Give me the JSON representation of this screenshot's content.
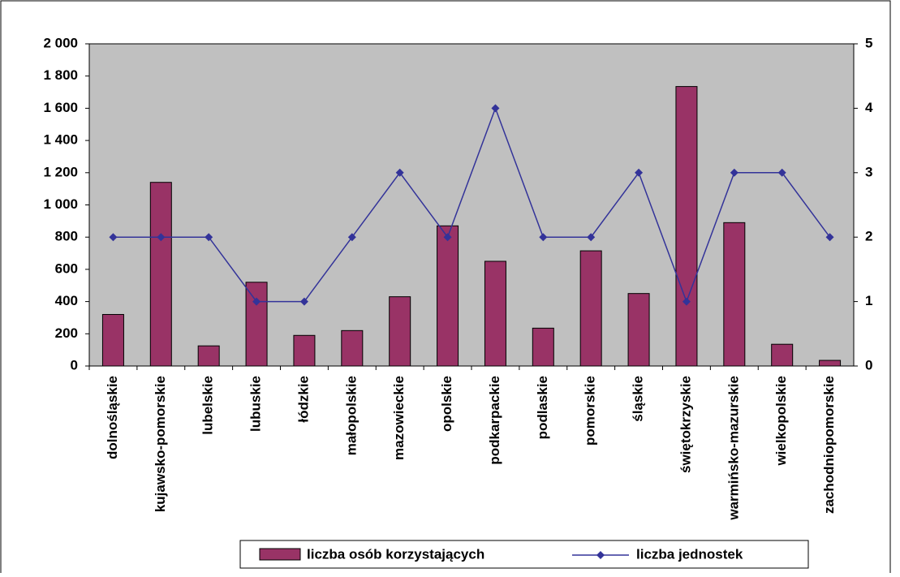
{
  "chart_data": {
    "type": "bar-line",
    "categories": [
      "dolnośląskie",
      "kujawsko-pomorskie",
      "lubelskie",
      "lubuskie",
      "łódzkie",
      "małopolskie",
      "mazowieckie",
      "opolskie",
      "podkarpackie",
      "podlaskie",
      "pomorskie",
      "śląskie",
      "świętokrzyskie",
      "warmińsko-mazurskie",
      "wielkopolskie",
      "zachodniopomorskie"
    ],
    "series": [
      {
        "name": "liczba osób korzystających",
        "type": "bar",
        "color": "#993366",
        "values": [
          320,
          1140,
          125,
          520,
          190,
          220,
          430,
          870,
          650,
          235,
          715,
          450,
          1735,
          890,
          135,
          35
        ]
      },
      {
        "name": "liczba jednostek",
        "type": "line",
        "axis": "y2",
        "color": "#333399",
        "values": [
          2,
          2,
          2,
          1,
          1,
          2,
          3,
          2,
          4,
          2,
          2,
          3,
          1,
          3,
          3,
          2
        ]
      }
    ],
    "ylim": [
      0,
      2000
    ],
    "yticks": [
      0,
      200,
      400,
      600,
      800,
      {
        "value": 1000,
        "label": "1 000"
      },
      {
        "value": 1200,
        "label": "1 200"
      },
      {
        "value": 1400,
        "label": "1 400"
      },
      {
        "value": 1600,
        "label": "1 600"
      },
      {
        "value": 1800,
        "label": "1 800"
      },
      {
        "value": 2000,
        "label": "2 000"
      }
    ],
    "y2lim": [
      0,
      5
    ],
    "y2ticks": [
      0,
      1,
      2,
      3,
      4,
      5
    ],
    "legend": "bottom"
  }
}
